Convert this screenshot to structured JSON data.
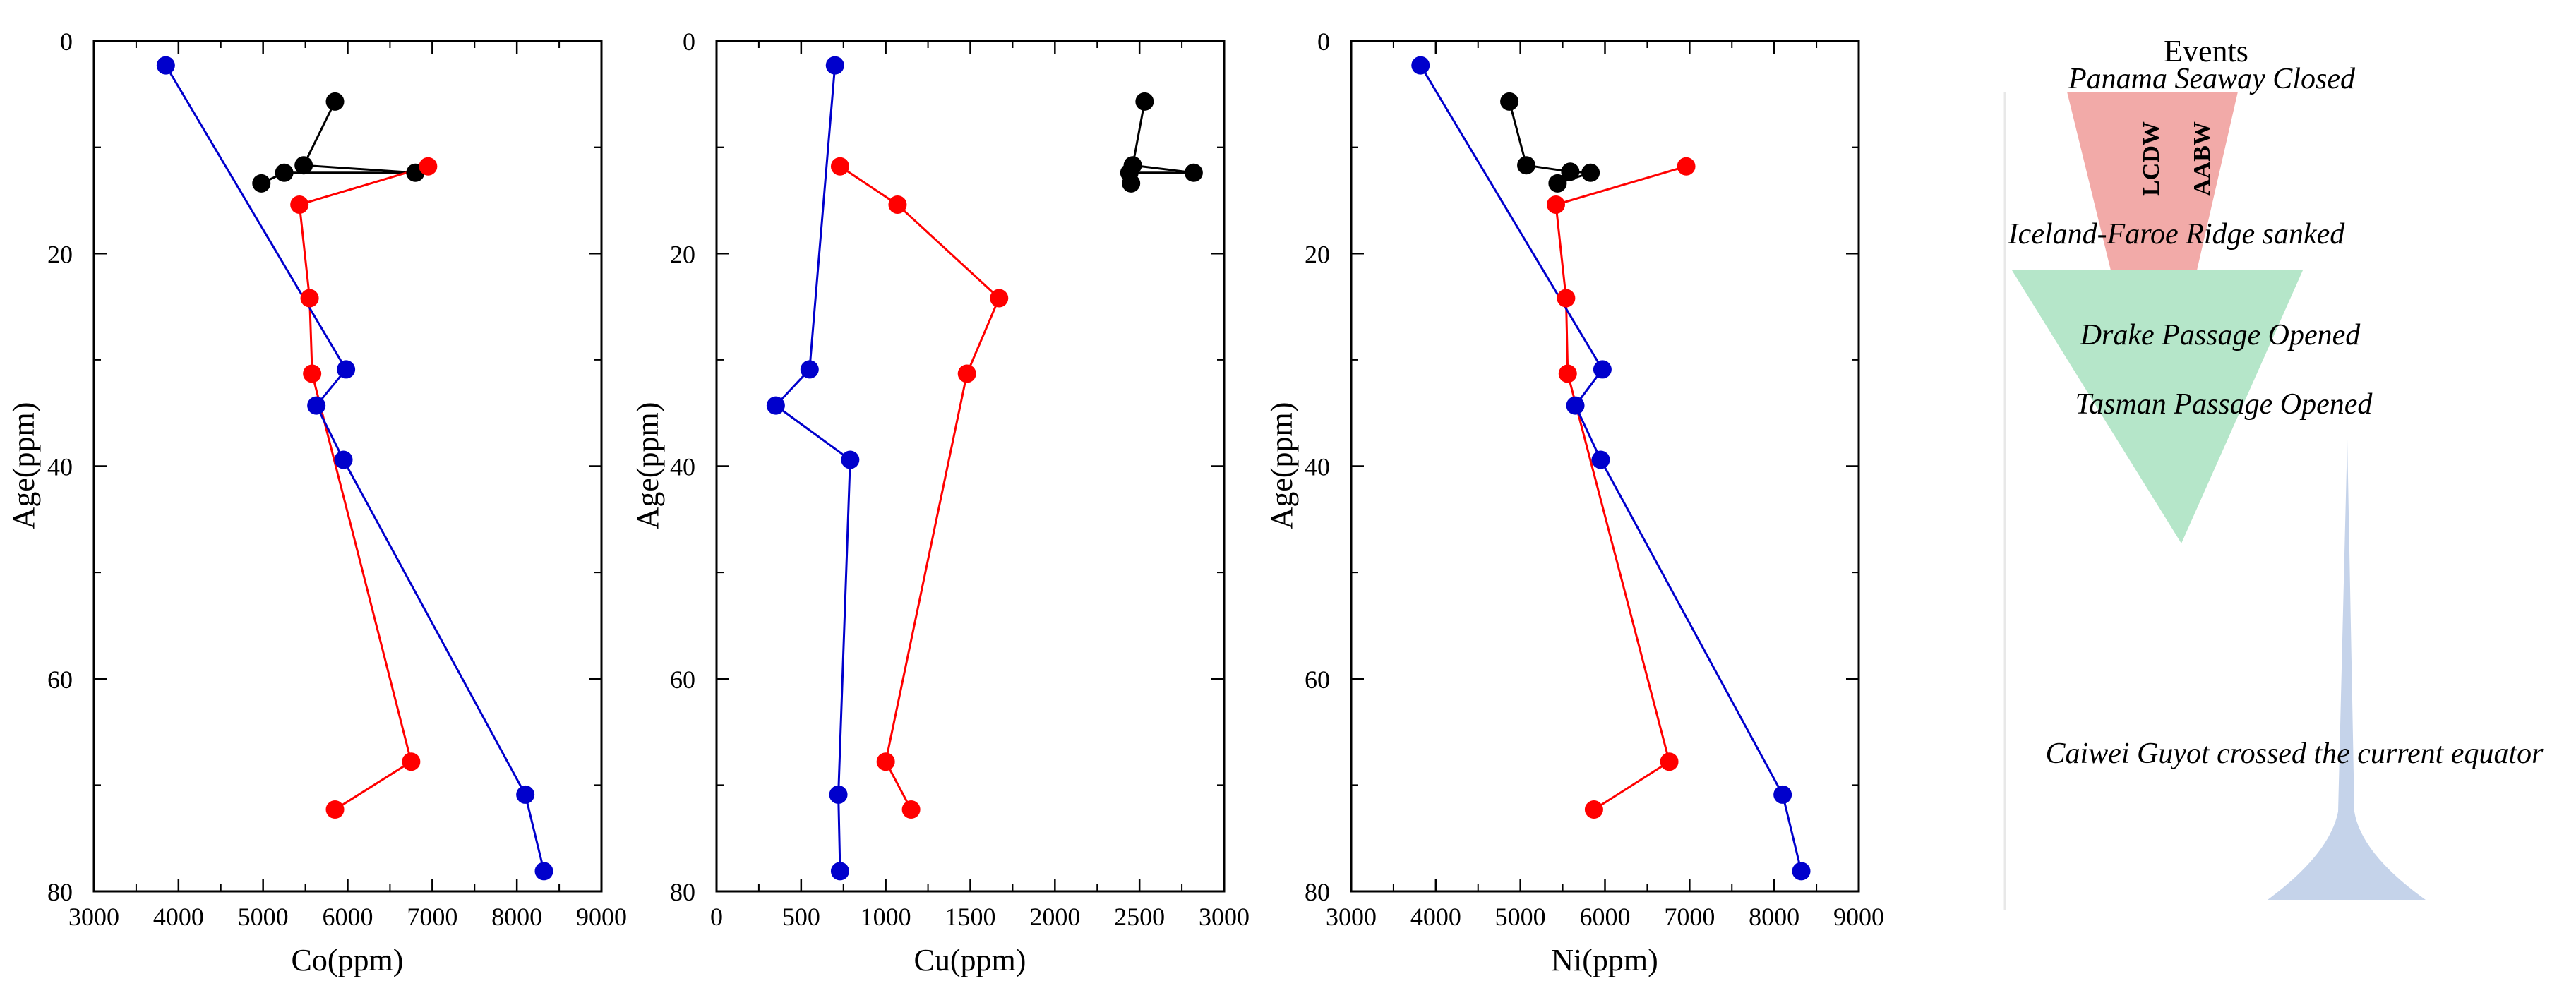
{
  "chart_data": [
    {
      "type": "line",
      "xlabel": "Co(ppm)",
      "ylabel": "Age(ppm)",
      "xlim": [
        3000,
        9000
      ],
      "ylim": [
        0,
        80
      ],
      "y_inverted": true,
      "xticks": [
        3000,
        4000,
        5000,
        6000,
        7000,
        8000,
        9000
      ],
      "yticks": [
        0,
        20,
        40,
        60,
        80
      ],
      "series": [
        {
          "name": "black",
          "color": "#000000",
          "points": [
            [
              5850,
              5.7
            ],
            [
              5480,
              11.7
            ],
            [
              6800,
              12.4
            ],
            [
              5250,
              12.4
            ],
            [
              4980,
              13.4
            ]
          ]
        },
        {
          "name": "red",
          "color": "#ff0000",
          "points": [
            [
              6950,
              11.8
            ],
            [
              5430,
              15.4
            ],
            [
              5550,
              24.2
            ],
            [
              5580,
              31.3
            ],
            [
              6750,
              67.8
            ],
            [
              5850,
              72.3
            ]
          ]
        },
        {
          "name": "blue",
          "color": "#0000cc",
          "points": [
            [
              3850,
              2.3
            ],
            [
              5980,
              30.9
            ],
            [
              5630,
              34.3
            ],
            [
              5950,
              39.4
            ],
            [
              8100,
              70.9
            ],
            [
              8320,
              78.1
            ]
          ]
        }
      ]
    },
    {
      "type": "line",
      "xlabel": "Cu(ppm)",
      "ylabel": "Age(ppm)",
      "xlim": [
        0,
        3000
      ],
      "ylim": [
        0,
        80
      ],
      "y_inverted": true,
      "xticks": [
        0,
        500,
        1000,
        1500,
        2000,
        2500,
        3000
      ],
      "yticks": [
        0,
        20,
        40,
        60,
        80
      ],
      "series": [
        {
          "name": "black",
          "color": "#000000",
          "points": [
            [
              2530,
              5.7
            ],
            [
              2460,
              11.7
            ],
            [
              2820,
              12.4
            ],
            [
              2440,
              12.4
            ],
            [
              2450,
              13.4
            ]
          ]
        },
        {
          "name": "red",
          "color": "#ff0000",
          "points": [
            [
              730,
              11.8
            ],
            [
              1070,
              15.4
            ],
            [
              1670,
              24.2
            ],
            [
              1480,
              31.3
            ],
            [
              1000,
              67.8
            ],
            [
              1150,
              72.3
            ]
          ]
        },
        {
          "name": "blue",
          "color": "#0000cc",
          "points": [
            [
              700,
              2.3
            ],
            [
              550,
              30.9
            ],
            [
              350,
              34.3
            ],
            [
              790,
              39.4
            ],
            [
              720,
              70.9
            ],
            [
              730,
              78.1
            ]
          ]
        }
      ]
    },
    {
      "type": "line",
      "xlabel": "Ni(ppm)",
      "ylabel": "Age(ppm)",
      "xlim": [
        3000,
        9000
      ],
      "ylim": [
        0,
        80
      ],
      "y_inverted": true,
      "xticks": [
        3000,
        4000,
        5000,
        6000,
        7000,
        8000,
        9000
      ],
      "yticks": [
        0,
        20,
        40,
        60,
        80
      ],
      "series": [
        {
          "name": "black",
          "color": "#000000",
          "points": [
            [
              4870,
              5.7
            ],
            [
              5070,
              11.7
            ],
            [
              5590,
              12.3
            ],
            [
              5830,
              12.4
            ],
            [
              5440,
              13.4
            ]
          ]
        },
        {
          "name": "red",
          "color": "#ff0000",
          "points": [
            [
              6960,
              11.8
            ],
            [
              5420,
              15.4
            ],
            [
              5540,
              24.2
            ],
            [
              5560,
              31.3
            ],
            [
              6760,
              67.8
            ],
            [
              5870,
              72.3
            ]
          ]
        },
        {
          "name": "blue",
          "color": "#0000cc",
          "points": [
            [
              3820,
              2.3
            ],
            [
              5970,
              30.9
            ],
            [
              5650,
              34.3
            ],
            [
              5950,
              39.4
            ],
            [
              8100,
              70.9
            ],
            [
              8320,
              78.1
            ]
          ]
        }
      ]
    }
  ],
  "events": {
    "heading": "Events",
    "items": [
      "Panama Seaway Closed",
      "Iceland-Faroe Ridge sanked",
      "Drake Passage Opened",
      "Tasman Passage Opened",
      "Caiwei Guyot crossed the current equator"
    ],
    "water_masses": [
      "LCDW",
      "AABW"
    ],
    "colors": {
      "red_zone": "#f2aaa8",
      "green_zone": "#b5e6c9",
      "blue_zone": "#c5d3ea"
    }
  }
}
